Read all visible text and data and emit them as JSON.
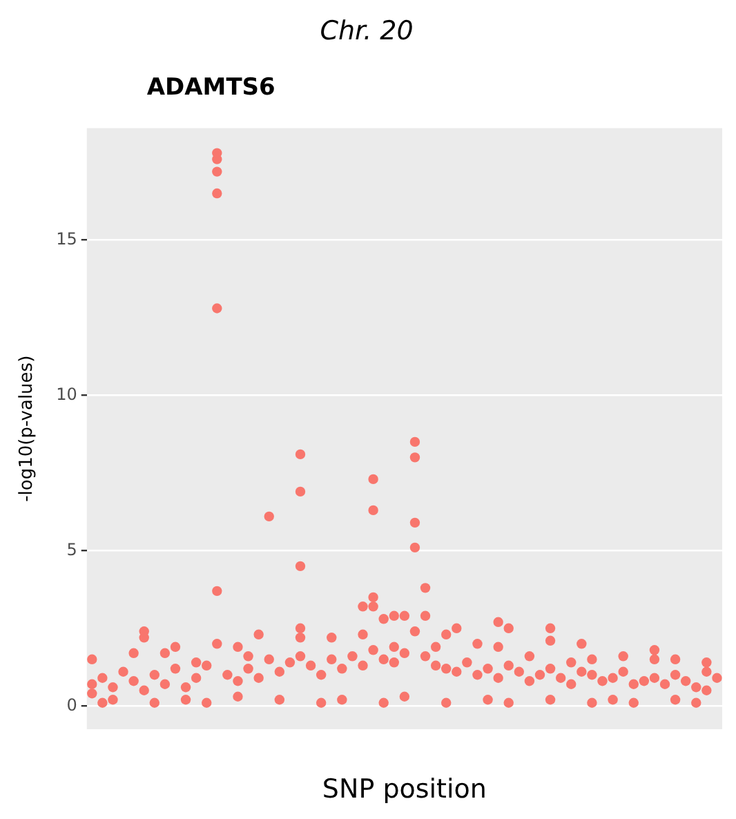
{
  "chart_data": {
    "type": "scatter",
    "title": "Chr. 20",
    "xlabel": "SNP position",
    "ylabel": "-log10(p-values)",
    "annotations": [
      "ADAMTS6"
    ],
    "categories": [
      null,
      null,
      null,
      null,
      null,
      null,
      null,
      null,
      null,
      null,
      null,
      null,
      null,
      null,
      null,
      null,
      null,
      null,
      null,
      null,
      null,
      null,
      null,
      null,
      null,
      null,
      null,
      null,
      null,
      null,
      null,
      null,
      null,
      null,
      null,
      null,
      null,
      null,
      null,
      null,
      null,
      null,
      null,
      null,
      null,
      null,
      null,
      null,
      null,
      null,
      null,
      null,
      null,
      null,
      null,
      null,
      null,
      null,
      null,
      null,
      null
    ],
    "ylim": [
      -0.75,
      18.6
    ],
    "yticks": [
      0,
      5,
      10,
      15
    ],
    "grid": "y",
    "marker": "circle",
    "series": [
      {
        "color": "#f8766d",
        "values": [
          0.4,
          0.9,
          0.6,
          1.1,
          0.8,
          0.5,
          1.0,
          0.7,
          1.2,
          0.6,
          0.9,
          1.3,
          2.0,
          1.0,
          0.8,
          1.2,
          0.9,
          1.5,
          1.1,
          1.4,
          2.5,
          1.3,
          1.0,
          1.5,
          1.2,
          1.6,
          1.3,
          3.2,
          1.5,
          1.4,
          1.7,
          2.4,
          1.6,
          1.3,
          1.2,
          1.1,
          1.4,
          1.0,
          1.2,
          0.9,
          1.3,
          1.1,
          0.8,
          1.0,
          1.2,
          0.9,
          0.7,
          1.1,
          1.0,
          0.8,
          0.9,
          1.1,
          0.7,
          0.8,
          0.9,
          0.7,
          1.0,
          0.8,
          0.6,
          0.5,
          0.9
        ]
      },
      {
        "color": "#f8766d",
        "values": [
          1.5,
          0.1,
          0.2,
          null,
          1.7,
          2.4,
          0.1,
          1.7,
          1.9,
          0.2,
          1.4,
          0.1,
          17.8,
          null,
          1.9,
          1.6,
          2.3,
          6.1,
          0.2,
          null,
          2.2,
          null,
          0.1,
          2.2,
          0.2,
          null,
          2.3,
          3.5,
          2.8,
          2.9,
          2.9,
          8.5,
          3.8,
          1.9,
          2.3,
          2.5,
          null,
          2.0,
          0.2,
          2.7,
          2.5,
          null,
          1.6,
          null,
          2.5,
          null,
          1.4,
          2.0,
          1.5,
          null,
          0.2,
          1.6,
          0.1,
          null,
          1.8,
          null,
          1.5,
          null,
          0.1,
          1.4,
          null
        ]
      },
      {
        "color": "#f8766d",
        "values": [
          0.7,
          null,
          null,
          null,
          null,
          2.2,
          null,
          null,
          null,
          null,
          null,
          null,
          17.6,
          null,
          0.3,
          null,
          null,
          null,
          null,
          null,
          1.6,
          null,
          null,
          null,
          null,
          null,
          3.2,
          1.8,
          0.1,
          1.9,
          0.3,
          8.0,
          2.9,
          null,
          0.1,
          null,
          null,
          null,
          null,
          1.9,
          0.1,
          null,
          null,
          null,
          2.1,
          null,
          null,
          null,
          0.1,
          null,
          null,
          null,
          null,
          null,
          1.5,
          null,
          0.2,
          null,
          null,
          1.1,
          null
        ]
      },
      {
        "color": "#f8766d",
        "values": [
          null,
          null,
          null,
          null,
          null,
          null,
          null,
          null,
          null,
          null,
          null,
          null,
          17.2,
          null,
          null,
          null,
          null,
          null,
          null,
          null,
          8.1,
          null,
          null,
          null,
          null,
          null,
          null,
          7.3,
          null,
          null,
          null,
          5.1,
          null,
          null,
          null,
          null,
          null,
          null,
          null,
          null,
          null,
          null,
          null,
          null,
          0.2,
          null,
          null,
          null,
          null,
          null,
          null,
          null,
          null,
          null,
          null,
          null,
          null,
          null,
          null,
          null,
          null
        ]
      },
      {
        "color": "#f8766d",
        "values": [
          null,
          null,
          null,
          null,
          null,
          null,
          null,
          null,
          null,
          null,
          null,
          null,
          16.5,
          null,
          null,
          null,
          null,
          null,
          null,
          null,
          null,
          null,
          null,
          null,
          null,
          null,
          null,
          6.3,
          null,
          null,
          null,
          5.9,
          null,
          null,
          null,
          null,
          null,
          null,
          null,
          null,
          null,
          null,
          null,
          null,
          null,
          null,
          null,
          null,
          null,
          null,
          null,
          null,
          null,
          null,
          null,
          null,
          null,
          null,
          null,
          null,
          null
        ]
      },
      {
        "color": "#f8766d",
        "values": [
          null,
          null,
          null,
          null,
          null,
          null,
          null,
          null,
          null,
          null,
          null,
          null,
          12.8,
          null,
          null,
          null,
          null,
          null,
          null,
          null,
          6.9,
          null,
          null,
          null,
          null,
          null,
          null,
          null,
          null,
          null,
          null,
          null,
          null,
          null,
          null,
          null,
          null,
          null,
          null,
          null,
          null,
          null,
          null,
          null,
          null,
          null,
          null,
          null,
          null,
          null,
          null,
          null,
          null,
          null,
          null,
          null,
          null,
          null,
          null,
          null,
          null
        ]
      },
      {
        "color": "#f8766d",
        "values": [
          null,
          null,
          null,
          null,
          null,
          null,
          null,
          null,
          null,
          null,
          null,
          null,
          null,
          null,
          null,
          null,
          null,
          null,
          null,
          null,
          4.5,
          null,
          null,
          null,
          null,
          null,
          null,
          null,
          null,
          null,
          null,
          null,
          null,
          null,
          null,
          null,
          null,
          null,
          null,
          null,
          null,
          null,
          null,
          null,
          null,
          null,
          null,
          null,
          null,
          null,
          null,
          null,
          null,
          null,
          null,
          null,
          null,
          null,
          null,
          null,
          null
        ]
      },
      {
        "color": "#f8766d",
        "values": [
          null,
          null,
          null,
          null,
          null,
          null,
          null,
          null,
          null,
          null,
          null,
          null,
          3.7,
          null,
          null,
          null,
          null,
          null,
          null,
          null,
          null,
          null,
          null,
          null,
          null,
          null,
          null,
          null,
          null,
          null,
          null,
          null,
          null,
          null,
          null,
          null,
          null,
          null,
          null,
          null,
          null,
          null,
          null,
          null,
          null,
          null,
          null,
          null,
          null,
          null,
          null,
          null,
          null,
          null,
          null,
          null,
          null,
          null,
          null,
          null,
          null
        ]
      }
    ]
  }
}
